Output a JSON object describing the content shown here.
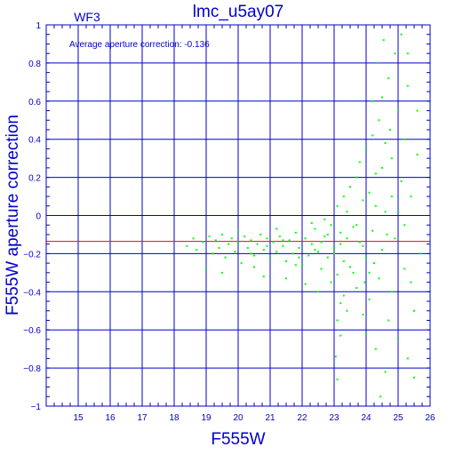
{
  "chart_data": {
    "type": "scatter",
    "title": "lmc_u5ay07",
    "chip_label": "WF3",
    "annotation": "Average aperture correction:  -0.136",
    "xlabel": "F555W",
    "ylabel": "F555W aperture correction",
    "xlim": [
      14,
      26
    ],
    "ylim": [
      -1,
      1
    ],
    "x_ticks": [
      15,
      16,
      17,
      18,
      19,
      20,
      21,
      22,
      23,
      24,
      25,
      26
    ],
    "y_ticks": [
      -1,
      -0.8,
      -0.6,
      -0.4,
      -0.2,
      0,
      0.2,
      0.4,
      0.6,
      0.8,
      1
    ],
    "y_tick_labels": [
      "−1",
      "−0.8",
      "−0.6",
      "−0.4",
      "−0.2",
      "0",
      "0.2",
      "0.4",
      "0.6",
      "0.8",
      "1"
    ],
    "grid": true,
    "reference_line": {
      "y": -0.136,
      "color": "#ff0000"
    },
    "colors": {
      "axis": "#0000cc",
      "points": "#00ff00",
      "reference": "#ff0000"
    },
    "series": [
      {
        "points": [
          [
            18.4,
            -0.16
          ],
          [
            18.6,
            -0.12
          ],
          [
            18.7,
            -0.18
          ],
          [
            18.9,
            -0.14
          ],
          [
            19.1,
            -0.11
          ],
          [
            19.2,
            -0.2
          ],
          [
            19.3,
            -0.13
          ],
          [
            19.4,
            -0.17
          ],
          [
            19.5,
            -0.1
          ],
          [
            19.6,
            -0.22
          ],
          [
            19.7,
            -0.15
          ],
          [
            19.8,
            -0.12
          ],
          [
            19.9,
            -0.19
          ],
          [
            20.0,
            -0.14
          ],
          [
            20.1,
            -0.25
          ],
          [
            20.2,
            -0.11
          ],
          [
            20.3,
            -0.17
          ],
          [
            20.4,
            -0.13
          ],
          [
            20.5,
            -0.21
          ],
          [
            20.6,
            -0.15
          ],
          [
            20.7,
            -0.1
          ],
          [
            20.8,
            -0.18
          ],
          [
            20.9,
            -0.12
          ],
          [
            21.0,
            -0.23
          ],
          [
            21.1,
            -0.14
          ],
          [
            21.2,
            -0.19
          ],
          [
            21.3,
            -0.11
          ],
          [
            21.4,
            -0.16
          ],
          [
            21.5,
            -0.24
          ],
          [
            21.6,
            -0.13
          ],
          [
            21.7,
            -0.2
          ],
          [
            21.8,
            -0.09
          ],
          [
            21.9,
            -0.17
          ],
          [
            22.0,
            -0.26
          ],
          [
            22.1,
            -0.12
          ],
          [
            22.2,
            -0.21
          ],
          [
            22.3,
            -0.15
          ],
          [
            22.4,
            -0.07
          ],
          [
            22.5,
            -0.19
          ],
          [
            22.6,
            -0.28
          ],
          [
            22.7,
            -0.11
          ],
          [
            22.8,
            -0.22
          ],
          [
            22.9,
            -0.05
          ],
          [
            23.0,
            -0.17
          ],
          [
            23.1,
            -0.31
          ],
          [
            23.2,
            -0.09
          ],
          [
            23.3,
            -0.24
          ],
          [
            23.4,
            0.02
          ],
          [
            19.0,
            -0.28
          ],
          [
            19.5,
            -0.3
          ],
          [
            20.0,
            -0.08
          ],
          [
            20.5,
            -0.27
          ],
          [
            20.8,
            -0.32
          ],
          [
            21.2,
            -0.07
          ],
          [
            21.5,
            -0.33
          ],
          [
            21.8,
            -0.26
          ],
          [
            22.1,
            -0.36
          ],
          [
            22.3,
            -0.04
          ],
          [
            22.5,
            -0.4
          ],
          [
            22.7,
            -0.02
          ],
          [
            22.9,
            -0.35
          ],
          [
            23.1,
            0.05
          ],
          [
            23.2,
            -0.46
          ],
          [
            23.3,
            0.1
          ],
          [
            23.1,
            -0.55
          ],
          [
            23.2,
            -0.63
          ],
          [
            23.05,
            -0.74
          ],
          [
            23.1,
            -0.86
          ],
          [
            23.3,
            -0.42
          ],
          [
            23.4,
            -0.5
          ],
          [
            23.5,
            0.15
          ],
          [
            23.6,
            -0.06
          ],
          [
            23.6,
            -0.3
          ],
          [
            23.7,
            0.2
          ],
          [
            23.7,
            -0.38
          ],
          [
            23.8,
            -0.14
          ],
          [
            23.8,
            0.28
          ],
          [
            23.9,
            -0.52
          ],
          [
            23.9,
            0.08
          ],
          [
            24.0,
            -0.22
          ],
          [
            24.0,
            0.35
          ],
          [
            24.0,
            -0.62
          ],
          [
            24.1,
            0.12
          ],
          [
            24.1,
            -0.44
          ],
          [
            24.2,
            0.42
          ],
          [
            24.2,
            -0.08
          ],
          [
            24.3,
            -0.7
          ],
          [
            24.3,
            0.22
          ],
          [
            24.4,
            0.5
          ],
          [
            24.4,
            -0.33
          ],
          [
            24.5,
            0.62
          ],
          [
            24.5,
            -0.18
          ],
          [
            24.6,
            0.02
          ],
          [
            24.6,
            -0.82
          ],
          [
            24.7,
            0.72
          ],
          [
            24.7,
            -0.55
          ],
          [
            24.8,
            0.3
          ],
          [
            24.8,
            -0.4
          ],
          [
            24.9,
            0.85
          ],
          [
            24.9,
            -0.12
          ],
          [
            25.0,
            0.55
          ],
          [
            25.0,
            -0.65
          ],
          [
            25.1,
            0.95
          ],
          [
            25.1,
            0.18
          ],
          [
            25.2,
            -0.28
          ],
          [
            25.2,
            0.4
          ],
          [
            25.3,
            -0.75
          ],
          [
            25.3,
            0.68
          ],
          [
            25.4,
            0.1
          ],
          [
            25.5,
            -0.5
          ],
          [
            25.6,
            0.32
          ],
          [
            25.7,
            -0.2
          ],
          [
            24.55,
            0.92
          ],
          [
            24.35,
            0.8
          ],
          [
            24.75,
            0.45
          ],
          [
            24.25,
            -0.25
          ],
          [
            24.65,
            -0.1
          ],
          [
            23.95,
            -0.35
          ],
          [
            24.45,
            -0.95
          ],
          [
            25.5,
            -0.85
          ],
          [
            20.4,
            -0.2
          ],
          [
            20.9,
            -0.16
          ],
          [
            21.4,
            -0.13
          ],
          [
            21.9,
            -0.22
          ],
          [
            22.4,
            -0.18
          ],
          [
            22.6,
            -0.14
          ],
          [
            22.8,
            -0.1
          ],
          [
            23.0,
            -0.2
          ],
          [
            23.2,
            -0.15
          ],
          [
            23.4,
            -0.12
          ],
          [
            23.5,
            -0.27
          ],
          [
            23.7,
            -0.05
          ],
          [
            23.9,
            -0.16
          ],
          [
            24.1,
            -0.3
          ],
          [
            24.3,
            0.05
          ],
          [
            24.5,
            0.25
          ],
          [
            24.8,
            0.1
          ],
          [
            25.0,
            0.02
          ],
          [
            25.2,
            -0.05
          ],
          [
            25.4,
            -0.35
          ],
          [
            25.6,
            0.55
          ],
          [
            25.3,
            0.85
          ],
          [
            24.6,
            0.38
          ],
          [
            24.2,
            0.6
          ]
        ]
      }
    ]
  }
}
